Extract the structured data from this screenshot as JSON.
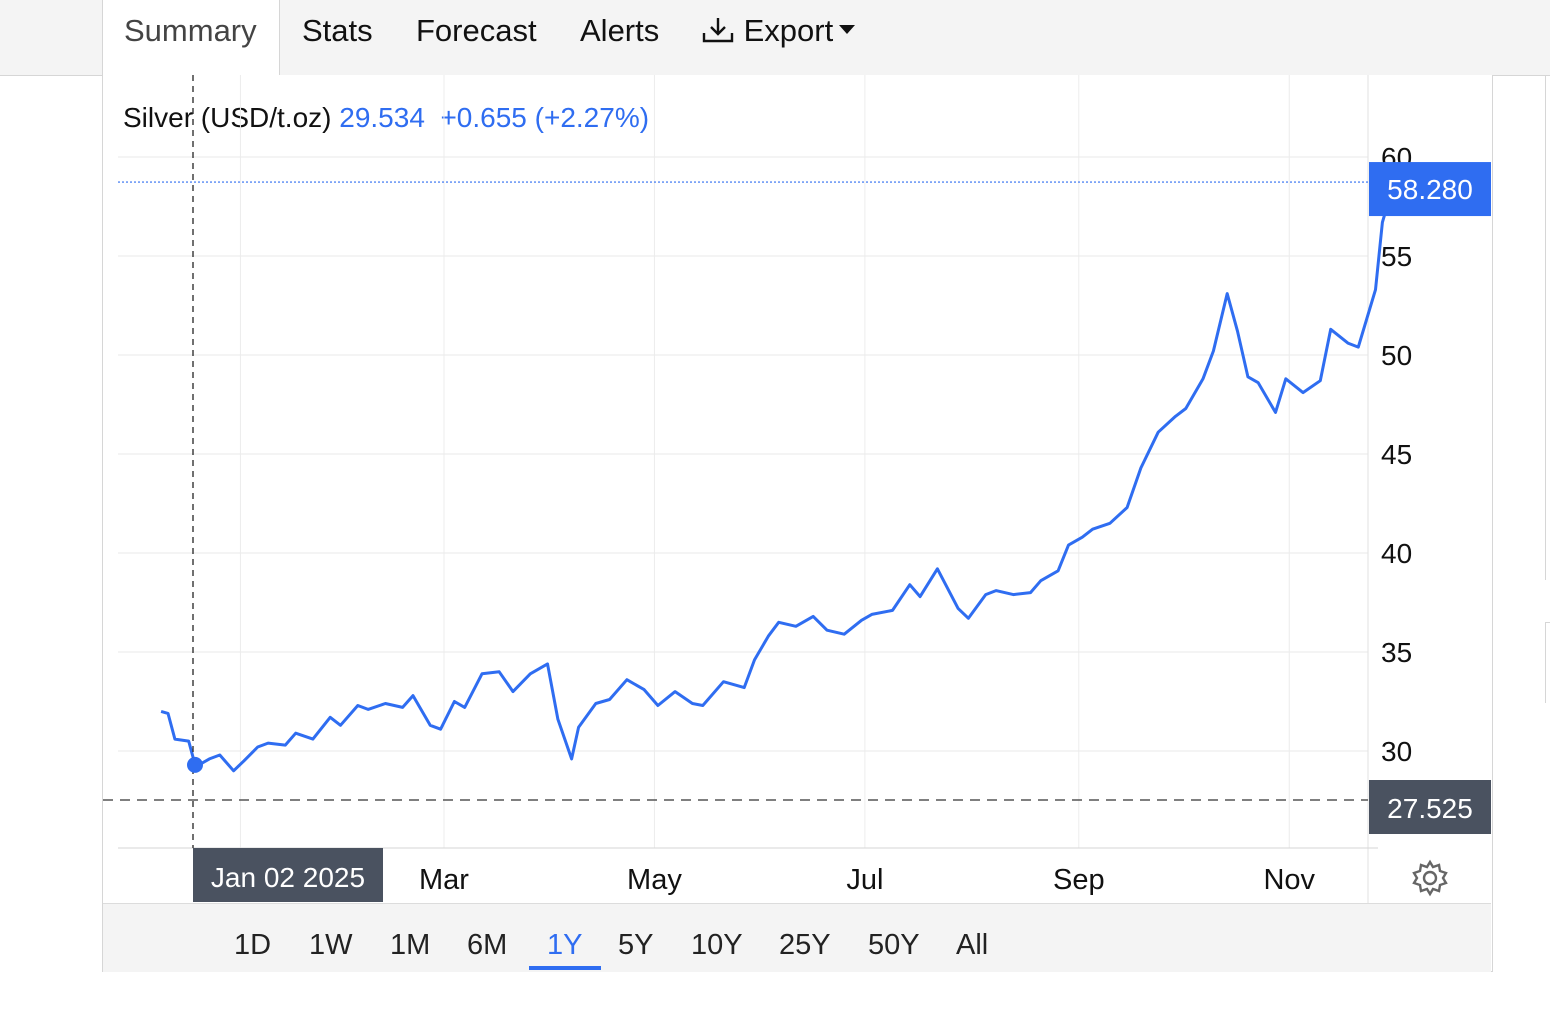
{
  "tabs": [
    {
      "label": "Summary",
      "active": true
    },
    {
      "label": "Stats"
    },
    {
      "label": "Forecast"
    },
    {
      "label": "Alerts"
    },
    {
      "label": "Export",
      "icon": "download-icon",
      "dropdown": true
    }
  ],
  "legend": {
    "name": "Silver (USD/t.oz)",
    "price": "29.534",
    "change": "+0.655 (+2.27%)"
  },
  "ranges": [
    "1D",
    "1W",
    "1M",
    "6M",
    "1Y",
    "5Y",
    "10Y",
    "25Y",
    "50Y",
    "All"
  ],
  "active_range": "1Y",
  "crosshair": {
    "date_label": "Jan 02 2025",
    "price_label": "27.525"
  },
  "last_price_label": "58.280",
  "colors": {
    "line": "#2f6df1",
    "accent": "#2f6df1",
    "crosshair_label_bg": "#4a5260"
  },
  "chart_data": {
    "type": "line",
    "title": "",
    "xlabel": "",
    "ylabel": "",
    "x_tick_labels": [
      "Jan",
      "Mar",
      "May",
      "Jul",
      "Sep",
      "Nov"
    ],
    "y_ticks": [
      30,
      35,
      40,
      45,
      50,
      55,
      60
    ],
    "ylim": [
      25,
      60.5
    ],
    "grid": true,
    "series": [
      {
        "name": "Silver (USD/t.oz)",
        "x": [
          "2024-12-09",
          "2024-12-11",
          "2024-12-13",
          "2024-12-17",
          "2024-12-19",
          "2024-12-23",
          "2024-12-26",
          "2024-12-30",
          "2025-01-02",
          "2025-01-06",
          "2025-01-09",
          "2025-01-14",
          "2025-01-17",
          "2025-01-22",
          "2025-01-27",
          "2025-01-30",
          "2025-02-04",
          "2025-02-07",
          "2025-02-12",
          "2025-02-17",
          "2025-02-20",
          "2025-02-25",
          "2025-02-28",
          "2025-03-04",
          "2025-03-07",
          "2025-03-12",
          "2025-03-17",
          "2025-03-21",
          "2025-03-26",
          "2025-03-31",
          "2025-04-03",
          "2025-04-07",
          "2025-04-09",
          "2025-04-14",
          "2025-04-18",
          "2025-04-23",
          "2025-04-28",
          "2025-05-02",
          "2025-05-07",
          "2025-05-12",
          "2025-05-15",
          "2025-05-21",
          "2025-05-27",
          "2025-05-30",
          "2025-06-03",
          "2025-06-06",
          "2025-06-11",
          "2025-06-16",
          "2025-06-20",
          "2025-06-25",
          "2025-06-30",
          "2025-07-03",
          "2025-07-09",
          "2025-07-14",
          "2025-07-17",
          "2025-07-22",
          "2025-07-28",
          "2025-07-31",
          "2025-08-05",
          "2025-08-08",
          "2025-08-13",
          "2025-08-18",
          "2025-08-21",
          "2025-08-26",
          "2025-08-29",
          "2025-09-02",
          "2025-09-05",
          "2025-09-10",
          "2025-09-15",
          "2025-09-19",
          "2025-09-24",
          "2025-09-29",
          "2025-10-02",
          "2025-10-07",
          "2025-10-10",
          "2025-10-14",
          "2025-10-17",
          "2025-10-20",
          "2025-10-23",
          "2025-10-28",
          "2025-10-31",
          "2025-11-05",
          "2025-11-10",
          "2025-11-13",
          "2025-11-18",
          "2025-11-21",
          "2025-11-26",
          "2025-11-28",
          "2025-12-01",
          "2025-12-02",
          "2025-12-03"
        ],
        "values": [
          32.0,
          31.9,
          30.6,
          30.5,
          29.2,
          29.6,
          29.8,
          29.0,
          29.5,
          30.2,
          30.4,
          30.3,
          30.9,
          30.6,
          31.7,
          31.3,
          32.3,
          32.1,
          32.4,
          32.2,
          32.8,
          31.3,
          31.1,
          32.5,
          32.2,
          33.9,
          34.0,
          33.0,
          33.9,
          34.4,
          31.6,
          29.6,
          31.2,
          32.4,
          32.6,
          33.6,
          33.1,
          32.3,
          33.0,
          32.4,
          32.3,
          33.5,
          33.2,
          34.6,
          35.8,
          36.5,
          36.3,
          36.8,
          36.1,
          35.9,
          36.6,
          36.9,
          37.1,
          38.4,
          37.8,
          39.2,
          37.2,
          36.7,
          37.9,
          38.1,
          37.9,
          38.0,
          38.6,
          39.1,
          40.4,
          40.8,
          41.2,
          41.5,
          42.3,
          44.3,
          46.1,
          46.9,
          47.3,
          48.8,
          50.2,
          53.1,
          51.2,
          48.9,
          48.6,
          47.1,
          48.8,
          48.1,
          48.7,
          51.3,
          50.6,
          50.4,
          53.3,
          56.7,
          58.5,
          57.2,
          58.28
        ]
      }
    ]
  }
}
